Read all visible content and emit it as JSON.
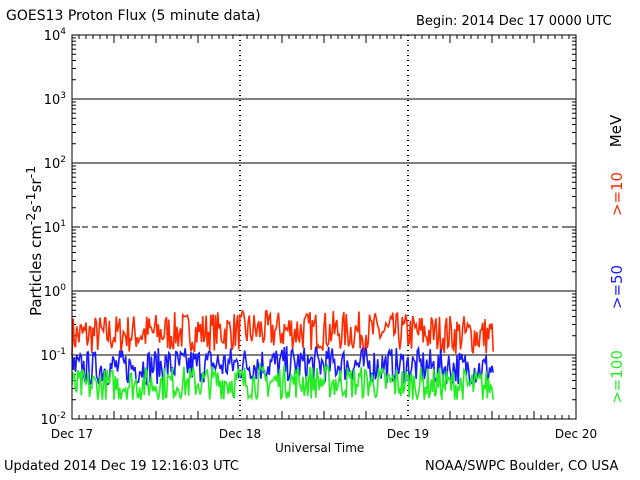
{
  "header": {
    "title": "GOES13 Proton Flux (5 minute data)",
    "begin": "Begin: 2014 Dec 17 0000 UTC"
  },
  "footer": {
    "updated": "Updated 2014 Dec 19 12:16:03 UTC",
    "credit": "NOAA/SWPC Boulder, CO USA"
  },
  "chart_data": {
    "type": "line",
    "title": "GOES13 Proton Flux (5 minute data)",
    "xlabel": "Universal Time",
    "ylabel": "Particles cm-2s-1sr-1",
    "yscale": "log",
    "ylim": [
      0.01,
      10000
    ],
    "xlim": [
      "2014-12-17",
      "2014-12-20"
    ],
    "x_ticks": [
      "Dec 17",
      "Dec 18",
      "Dec 19",
      "Dec 20"
    ],
    "y_ticks": [
      "10-2",
      "10-1",
      "100",
      "101",
      "102",
      "103",
      "104"
    ],
    "grid": "horizontal at each decade; dashed at 10^1",
    "data_end": "2014-12-19 12:16",
    "legend_placement": "right, rotated",
    "series": [
      {
        "name": ">=10",
        "color": "#ff2a00",
        "typical": 0.2,
        "range": [
          0.1,
          0.5
        ]
      },
      {
        "name": ">=50",
        "color": "#1a1aff",
        "typical": 0.06,
        "range": [
          0.035,
          0.15
        ]
      },
      {
        "name": ">=100",
        "color": "#22ee22",
        "typical": 0.032,
        "range": [
          0.02,
          0.08
        ]
      }
    ],
    "unit_label": "MeV"
  }
}
